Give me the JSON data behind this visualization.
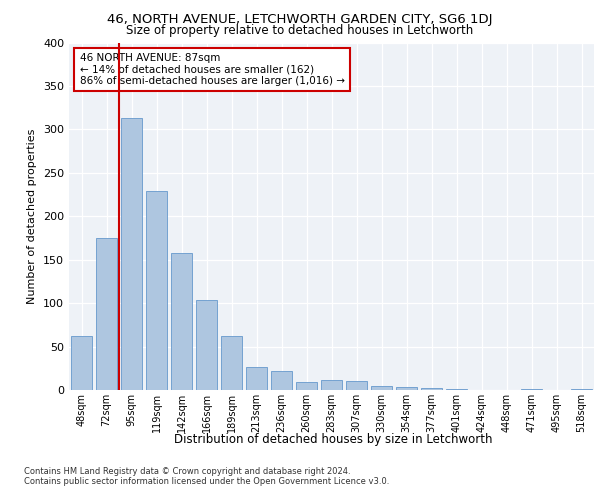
{
  "title1": "46, NORTH AVENUE, LETCHWORTH GARDEN CITY, SG6 1DJ",
  "title2": "Size of property relative to detached houses in Letchworth",
  "xlabel": "Distribution of detached houses by size in Letchworth",
  "ylabel": "Number of detached properties",
  "categories": [
    "48sqm",
    "72sqm",
    "95sqm",
    "119sqm",
    "142sqm",
    "166sqm",
    "189sqm",
    "213sqm",
    "236sqm",
    "260sqm",
    "283sqm",
    "307sqm",
    "330sqm",
    "354sqm",
    "377sqm",
    "401sqm",
    "424sqm",
    "448sqm",
    "471sqm",
    "495sqm",
    "518sqm"
  ],
  "values": [
    62,
    175,
    313,
    229,
    158,
    104,
    62,
    26,
    22,
    9,
    11,
    10,
    5,
    4,
    2,
    1,
    0,
    0,
    1,
    0,
    1
  ],
  "bar_color": "#aec6e0",
  "bar_edge_color": "#6699cc",
  "vline_x": 1.5,
  "vline_color": "#cc0000",
  "annotation_text": "46 NORTH AVENUE: 87sqm\n← 14% of detached houses are smaller (162)\n86% of semi-detached houses are larger (1,016) →",
  "annotation_box_color": "#ffffff",
  "annotation_box_edge_color": "#cc0000",
  "ylim": [
    0,
    400
  ],
  "yticks": [
    0,
    50,
    100,
    150,
    200,
    250,
    300,
    350,
    400
  ],
  "background_color": "#eef2f7",
  "footer1": "Contains HM Land Registry data © Crown copyright and database right 2024.",
  "footer2": "Contains public sector information licensed under the Open Government Licence v3.0."
}
